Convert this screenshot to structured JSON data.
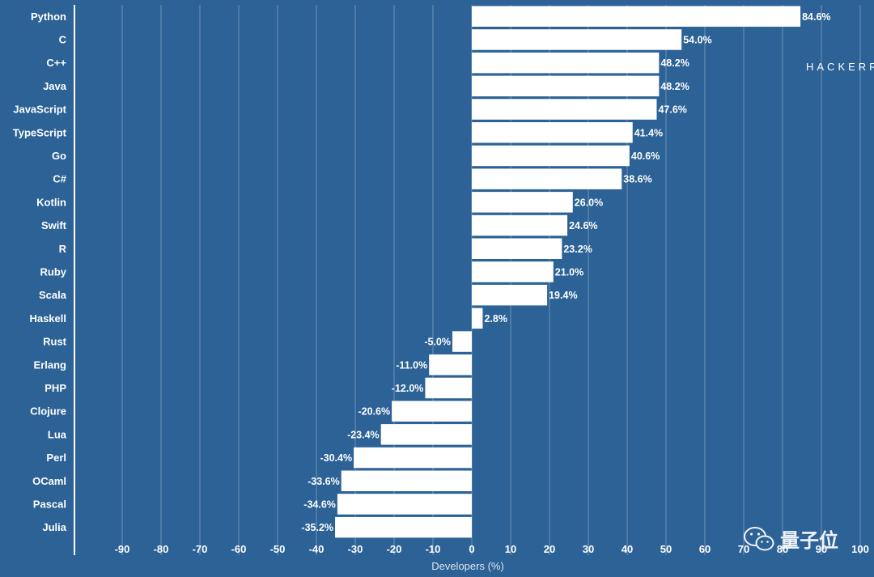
{
  "colors": {
    "background": "#2c6296",
    "bar": "#ffffff",
    "grid": "#6f93b8",
    "text": "#ffffff",
    "axis_title": "#dce6f0"
  },
  "brand_text": "HACKERR",
  "watermark": {
    "icon": "wechat-icon",
    "text": "量子位"
  },
  "chart_data": {
    "type": "bar",
    "orientation": "horizontal",
    "title": "",
    "xlabel": "Developers (%)",
    "ylabel": "",
    "xlim": [
      -100,
      100
    ],
    "xticks": [
      -90,
      -80,
      -70,
      -60,
      -50,
      -40,
      -30,
      -20,
      -10,
      0,
      10,
      20,
      30,
      40,
      50,
      60,
      70,
      80,
      90,
      100
    ],
    "grid": true,
    "categories": [
      "Python",
      "C",
      "C++",
      "Java",
      "JavaScript",
      "TypeScript",
      "Go",
      "C#",
      "Kotlin",
      "Swift",
      "R",
      "Ruby",
      "Scala",
      "Haskell",
      "Rust",
      "Erlang",
      "PHP",
      "Clojure",
      "Lua",
      "Perl",
      "OCaml",
      "Pascal",
      "Julia"
    ],
    "values": [
      84.6,
      54.0,
      48.2,
      48.2,
      47.6,
      41.4,
      40.6,
      38.6,
      26.0,
      24.6,
      23.2,
      21.0,
      19.4,
      2.8,
      -5.0,
      -11.0,
      -12.0,
      -20.6,
      -23.4,
      -30.4,
      -33.6,
      -34.6,
      -35.2
    ],
    "labels": [
      "84.6%",
      "54.0%",
      "48.2%",
      "48.2%",
      "47.6%",
      "41.4%",
      "40.6%",
      "38.6%",
      "26.0%",
      "24.6%",
      "23.2%",
      "21.0%",
      "19.4%",
      "2.8%",
      "-5.0%",
      "-11.0%",
      "-12.0%",
      "-20.6%",
      "-23.4%",
      "-30.4%",
      "-33.6%",
      "-34.6%",
      "-35.2%"
    ]
  }
}
